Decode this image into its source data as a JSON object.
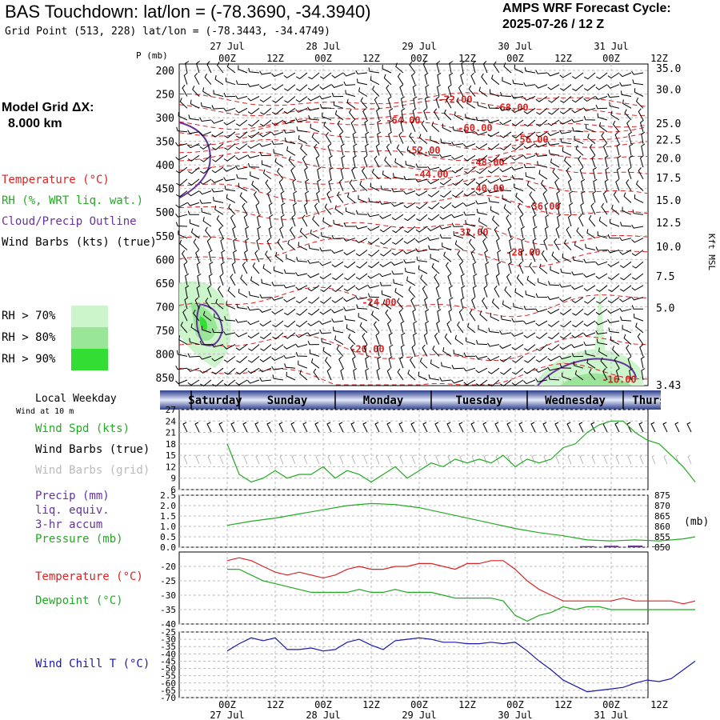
{
  "header": {
    "title": "BAS Touchdown:  lat/lon = (-78.3690, -34.3940)",
    "grid_point": "Grid Point (513, 228) lat/lon = (-78.3443, -34.4749)",
    "cycle_label": "AMPS WRF Forecast Cycle:",
    "cycle_value": "2025-07-26 / 12  Z"
  },
  "left_panel": {
    "model_grid_label": "Model Grid ΔX:",
    "model_grid_value": "8.000 km",
    "legend": [
      {
        "text": "Temperature (°C)",
        "color": "#dd2222"
      },
      {
        "text": "RH (%, WRT liq. wat.)",
        "color": "#22aa22"
      },
      {
        "text": "Cloud/Precip Outline",
        "color": "#663399"
      },
      {
        "text": "Wind Barbs (kts) (true)",
        "color": "#000000"
      }
    ],
    "rh_legend": [
      {
        "text": "RH > 70%",
        "color": "#ccf5cc"
      },
      {
        "text": "RH > 80%",
        "color": "#99e699"
      },
      {
        "text": "RH > 90%",
        "color": "#33dd33"
      }
    ],
    "local_weekday": "Local Weekday",
    "wind_at": "Wind at 10 m",
    "panel2_labels": [
      {
        "text": "Wind Spd (kts)",
        "color": "#22aa22"
      },
      {
        "text": "Wind Barbs (true)",
        "color": "#000000"
      },
      {
        "text": "Wind Barbs (grid)",
        "color": "#bbbbbb"
      }
    ],
    "panel3_labels": [
      {
        "text": "Precip (mm)",
        "color": "#663399"
      },
      {
        "text": "liq. equiv.",
        "color": "#663399"
      },
      {
        "text": "3-hr accum",
        "color": "#663399"
      },
      {
        "text": "Pressure (mb)",
        "color": "#22aa22"
      }
    ],
    "panel4_labels": [
      {
        "text": "Temperature (°C)",
        "color": "#dd2222"
      },
      {
        "text": "Dewpoint (°C)",
        "color": "#22aa22"
      }
    ],
    "panel5_labels": [
      {
        "text": "Wind Chill T (°C)",
        "color": "#1a1aaa"
      }
    ]
  },
  "colors": {
    "temperature": "#dd2222",
    "rh": "#22aa22",
    "cloud": "#663399",
    "wind_chill": "#1a1aaa",
    "grid": "#aaaaaa",
    "weekday_bar": "#6a7fc0"
  },
  "chart_data": [
    {
      "type": "heatmap",
      "name": "vertical time-section",
      "time_ticks": [
        "00Z",
        "12Z",
        "00Z",
        "12Z",
        "00Z",
        "12Z",
        "00Z",
        "12Z",
        "00Z",
        "12Z"
      ],
      "date_ticks": [
        "27 Jul",
        "28 Jul",
        "29 Jul",
        "30 Jul",
        "31 Jul"
      ],
      "y_title": "P (mb)",
      "pressure_ticks": [
        200,
        250,
        300,
        350,
        400,
        450,
        500,
        550,
        600,
        650,
        700,
        750,
        800,
        850
      ],
      "height_ticks": [
        "35.0",
        "30.0",
        "25.0",
        "22.5",
        "20.0",
        "17.5",
        "15.0",
        "12.5",
        "10.0",
        "7.5",
        "5.0",
        "3.43"
      ],
      "right_label": "Kft MSL",
      "temperature_contour_labels": [
        {
          "label": "-72.00",
          "time_h": 57,
          "p": 262
        },
        {
          "label": "-68.00",
          "time_h": 71,
          "p": 279
        },
        {
          "label": "-64.00",
          "time_h": 44,
          "p": 306
        },
        {
          "label": "-60.00",
          "time_h": 62,
          "p": 322
        },
        {
          "label": "-56.00",
          "time_h": 76,
          "p": 346
        },
        {
          "label": "-52.00",
          "time_h": 49,
          "p": 369
        },
        {
          "label": "-48.00",
          "time_h": 65,
          "p": 395
        },
        {
          "label": "-44.00",
          "time_h": 51,
          "p": 420
        },
        {
          "label": "-40.00",
          "time_h": 65,
          "p": 450
        },
        {
          "label": "-36.00",
          "time_h": 79,
          "p": 488
        },
        {
          "label": "-32.00",
          "time_h": 61,
          "p": 543
        },
        {
          "label": "-28.00",
          "time_h": 74,
          "p": 585
        },
        {
          "label": "-24.00",
          "time_h": 38,
          "p": 691
        },
        {
          "label": "-20.00",
          "time_h": 35,
          "p": 790
        },
        {
          "label": "-16.00",
          "time_h": 98,
          "p": 854
        }
      ]
    },
    {
      "type": "line",
      "name": "weekday bar",
      "weekdays": [
        "Saturday",
        "Sunday",
        "Monday",
        "Tuesday",
        "Wednesday",
        "Thursday"
      ],
      "weekday_spans": [
        [
          -9,
          3
        ],
        [
          3,
          27
        ],
        [
          27,
          51
        ],
        [
          51,
          75
        ],
        [
          75,
          99
        ],
        [
          99,
          117
        ]
      ]
    },
    {
      "type": "line",
      "name": "wind speed 10 m",
      "x_hours": [
        0,
        3,
        6,
        9,
        12,
        15,
        18,
        21,
        24,
        27,
        30,
        33,
        36,
        39,
        42,
        45,
        48,
        51,
        54,
        57,
        60,
        63,
        66,
        69,
        72,
        75,
        78,
        81,
        84,
        87,
        90,
        93,
        96,
        99,
        102,
        105,
        108,
        111,
        114,
        117
      ],
      "values": [
        18,
        10,
        8,
        9,
        11,
        9,
        10,
        10,
        12,
        9,
        11,
        10,
        8,
        10,
        12,
        9,
        11,
        13,
        12,
        14,
        13,
        14,
        13,
        15,
        12,
        14,
        13,
        14,
        17,
        18,
        21,
        23,
        24,
        24,
        21,
        19,
        18,
        15,
        12,
        8
      ],
      "y_ticks": [
        6,
        9,
        12,
        15,
        18,
        21,
        24,
        27
      ],
      "ylim": [
        6,
        27
      ]
    },
    {
      "type": "line",
      "name": "pressure and precip",
      "x_hours": [
        0,
        6,
        12,
        18,
        24,
        30,
        36,
        42,
        48,
        54,
        60,
        66,
        72,
        78,
        84,
        90,
        96,
        102,
        108,
        114,
        117
      ],
      "pressure_values": [
        860.5,
        862.5,
        864,
        866,
        868,
        870,
        871,
        870.5,
        869,
        866.5,
        864,
        861.5,
        859,
        857,
        855.5,
        853.5,
        853,
        853.5,
        853,
        854,
        855
      ],
      "precip_values": [
        0,
        0,
        0,
        0,
        0,
        0,
        0,
        0,
        0,
        0,
        0,
        0,
        0,
        0,
        0,
        0.05,
        0.07,
        0.08,
        0.04,
        0,
        0
      ],
      "left_ticks": [
        0.0,
        0.5,
        1.0,
        1.5,
        2.0,
        2.5
      ],
      "right_ticks": [
        850,
        855,
        860,
        865,
        870,
        875
      ],
      "right_unit": "(mb)",
      "ylim_left": [
        0,
        2.5
      ],
      "ylim_right": [
        850,
        875
      ]
    },
    {
      "type": "line",
      "name": "temperature and dewpoint",
      "x_hours": [
        0,
        3,
        6,
        9,
        12,
        15,
        18,
        21,
        24,
        27,
        30,
        33,
        36,
        39,
        42,
        45,
        48,
        51,
        54,
        57,
        60,
        63,
        66,
        69,
        72,
        75,
        78,
        81,
        84,
        87,
        90,
        93,
        96,
        99,
        102,
        105,
        108,
        111,
        114,
        117
      ],
      "temperature_values": [
        -18,
        -17,
        -18,
        -20,
        -22,
        -23,
        -22,
        -23,
        -24,
        -23,
        -21,
        -20,
        -21,
        -21,
        -20,
        -20,
        -19,
        -19,
        -20,
        -21,
        -19,
        -19,
        -18,
        -18,
        -21,
        -25,
        -28,
        -30,
        -32,
        -32,
        -32,
        -32,
        -32,
        -31,
        -32,
        -32,
        -32,
        -32,
        -33,
        -32
      ],
      "dewpoint_values": [
        -21,
        -21,
        -23,
        -25,
        -26,
        -27,
        -28,
        -29,
        -29,
        -29,
        -29,
        -28,
        -29,
        -29,
        -28,
        -29,
        -29,
        -29,
        -30,
        -31,
        -31,
        -31,
        -31,
        -32,
        -37,
        -39,
        -37,
        -36,
        -34,
        -35,
        -34,
        -34,
        -35,
        -35,
        -35,
        -35,
        -35,
        -35,
        -35,
        -35
      ],
      "y_ticks": [
        -40,
        -35,
        -30,
        -25,
        -20
      ],
      "ylim": [
        -40,
        -15
      ]
    },
    {
      "type": "line",
      "name": "wind chill",
      "x_hours": [
        0,
        3,
        6,
        9,
        12,
        15,
        18,
        21,
        24,
        27,
        30,
        33,
        36,
        39,
        42,
        45,
        48,
        51,
        54,
        57,
        60,
        63,
        66,
        69,
        72,
        75,
        78,
        81,
        84,
        87,
        90,
        93,
        96,
        99,
        102,
        105,
        108,
        111,
        114,
        117
      ],
      "values": [
        -38,
        -33,
        -29,
        -31,
        -29,
        -37,
        -37,
        -36,
        -38,
        -37,
        -32,
        -30,
        -34,
        -37,
        -31,
        -30,
        -29,
        -30,
        -32,
        -32,
        -33,
        -33,
        -32,
        -33,
        -32,
        -38,
        -45,
        -51,
        -58,
        -62,
        -66,
        -65,
        -64,
        -63,
        -60,
        -58,
        -59,
        -57,
        -51,
        -45
      ],
      "y_ticks": [
        -70,
        -65,
        -60,
        -55,
        -50,
        -45,
        -40,
        -35,
        -30,
        -25
      ],
      "ylim": [
        -70,
        -25
      ]
    }
  ]
}
